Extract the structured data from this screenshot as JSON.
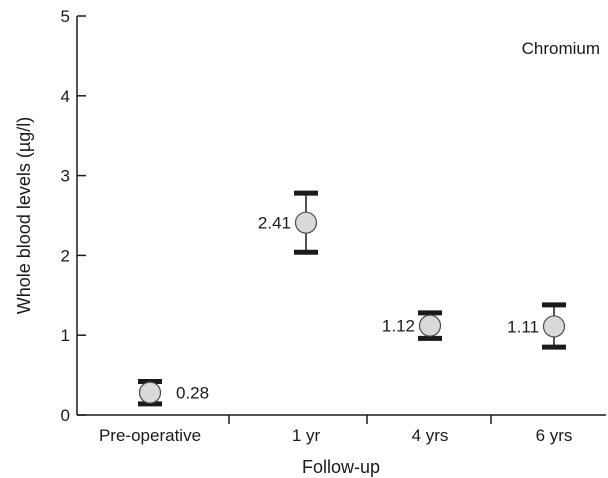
{
  "chart_data": {
    "type": "scatter",
    "title": "",
    "annotation": "Chromium",
    "xlabel": "Follow-up",
    "ylabel": "Whole blood levels (µg/l)",
    "categories": [
      "Pre-operative",
      "1 yr",
      "4 yrs",
      "6 yrs"
    ],
    "values": [
      0.28,
      2.41,
      1.12,
      1.11
    ],
    "error_low": [
      0.14,
      2.04,
      0.96,
      0.85
    ],
    "error_high": [
      0.42,
      2.78,
      1.28,
      1.38
    ],
    "data_labels": [
      "0.28",
      "2.41",
      "1.12",
      "1.11"
    ],
    "label_side": [
      "right",
      "left",
      "left",
      "left"
    ],
    "ylim": [
      0,
      5
    ],
    "yticks": [
      0,
      1,
      2,
      3,
      4,
      5
    ],
    "ytick_labels": [
      "0",
      "1",
      "2",
      "3",
      "4",
      "5"
    ],
    "grid": false,
    "marker_color": "#d9d9d9",
    "line_color": "#1a1a1a"
  }
}
